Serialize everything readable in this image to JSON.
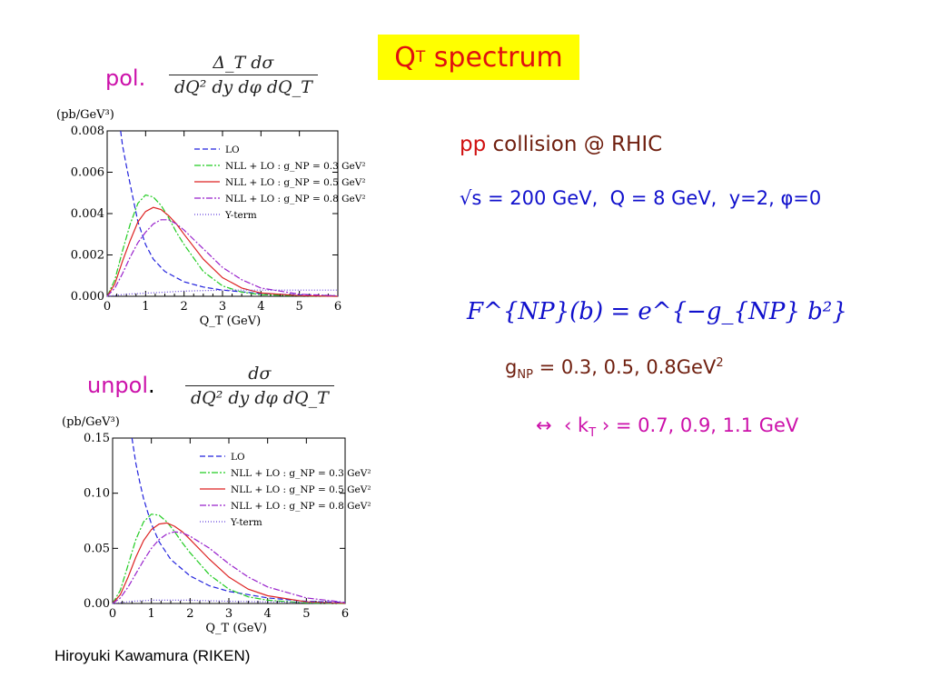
{
  "slide": {
    "title_main": "Q",
    "title_sub": "T",
    "title_rest": " spectrum",
    "pol_label": "pol.",
    "unpol_label": "unpol",
    "unpol_dot": ".",
    "pol_formula_num": "Δ_T dσ",
    "pol_formula_den": "dQ² dy dφ dQ_T",
    "unpol_formula_num": "dσ",
    "unpol_formula_den": "dQ² dy dφ dQ_T",
    "collision_pp": "pp",
    "collision_rest": " collision @ RHIC",
    "kinematics": "√s = 200 GeV,  Q = 8 GeV,  y=2, φ=0",
    "fnp_formula": "F^{NP}(b) = e^{−g_{NP} b²}",
    "gnp_prefix": "g",
    "gnp_sub": "NP",
    "gnp_values": " = 0.3, 0.5, 0.8GeV",
    "gnp_sup": "2",
    "kt_prefix": "↔  ‹ k",
    "kt_sub": "T",
    "kt_values": " › = 0.7, 0.9, 1.1 GeV",
    "footer": "Hiroyuki Kawamura (RIKEN)"
  },
  "chart_data": [
    {
      "type": "line",
      "title": "pol.",
      "ylabel": "(pb/GeV³)",
      "xlabel": "Q_T (GeV)",
      "xlim": [
        0,
        6
      ],
      "ylim": [
        0,
        0.008
      ],
      "xticks": [
        "0",
        "1",
        "2",
        "3",
        "4",
        "5",
        "6"
      ],
      "yticks": [
        "0.000",
        "0.002",
        "0.004",
        "0.006",
        "0.008"
      ],
      "legend_position": "top-right",
      "series": [
        {
          "name": "LO",
          "color": "#2222dd",
          "dash": "6,3",
          "x": [
            0.35,
            0.4,
            0.5,
            0.6,
            0.7,
            0.8,
            1.0,
            1.2,
            1.5,
            2.0,
            2.5,
            3.0,
            4.0,
            5.0,
            6.0
          ],
          "y": [
            0.008,
            0.0073,
            0.0063,
            0.0054,
            0.0045,
            0.0036,
            0.0025,
            0.0018,
            0.0012,
            0.0007,
            0.00045,
            0.0003,
            0.00013,
            6e-05,
            2e-05
          ]
        },
        {
          "name": "NLL + LO : g_NP = 0.3 GeV²",
          "color": "#22cc22",
          "dash": "7,2,2,2",
          "x": [
            0,
            0.2,
            0.4,
            0.6,
            0.8,
            1.0,
            1.2,
            1.4,
            1.6,
            1.8,
            2.0,
            2.5,
            3.0,
            3.5,
            4.0,
            5.0,
            6.0
          ],
          "y": [
            0,
            0.0008,
            0.0022,
            0.0035,
            0.0045,
            0.0049,
            0.0048,
            0.0044,
            0.0038,
            0.0031,
            0.0025,
            0.0012,
            0.0005,
            0.0002,
            8e-05,
            2e-05,
            0
          ]
        },
        {
          "name": "NLL + LO : g_NP = 0.5 GeV²",
          "color": "#dd2222",
          "dash": "",
          "x": [
            0,
            0.2,
            0.4,
            0.6,
            0.8,
            1.0,
            1.2,
            1.4,
            1.6,
            1.8,
            2.0,
            2.5,
            3.0,
            3.5,
            4.0,
            5.0,
            6.0
          ],
          "y": [
            0,
            0.0006,
            0.0017,
            0.0027,
            0.0036,
            0.0041,
            0.0043,
            0.0042,
            0.0039,
            0.0035,
            0.003,
            0.0018,
            0.0009,
            0.0004,
            0.00016,
            3e-05,
            0
          ]
        },
        {
          "name": "NLL + LO : g_NP = 0.8 GeV²",
          "color": "#9922cc",
          "dash": "7,2,2,2",
          "x": [
            0,
            0.2,
            0.4,
            0.6,
            0.8,
            1.0,
            1.2,
            1.4,
            1.6,
            1.8,
            2.0,
            2.5,
            3.0,
            3.5,
            4.0,
            5.0,
            6.0
          ],
          "y": [
            0,
            0.0004,
            0.0011,
            0.0019,
            0.0026,
            0.0031,
            0.0035,
            0.0037,
            0.0037,
            0.0035,
            0.0032,
            0.0023,
            0.0014,
            0.0008,
            0.0004,
            0.0001,
            2e-05
          ]
        },
        {
          "name": "Y-term",
          "color": "#6644dd",
          "dash": "1,2",
          "x": [
            0,
            0.5,
            1.0,
            2.0,
            3.0,
            4.0,
            5.0,
            6.0
          ],
          "y": [
            0,
            0.0001,
            0.00015,
            0.00025,
            0.0003,
            0.0003,
            0.0003,
            0.0003
          ]
        }
      ]
    },
    {
      "type": "line",
      "title": "unpol.",
      "ylabel": "(pb/GeV³)",
      "xlabel": "Q_T (GeV)",
      "xlim": [
        0,
        6
      ],
      "ylim": [
        0,
        0.15
      ],
      "xticks": [
        "0",
        "1",
        "2",
        "3",
        "4",
        "5",
        "6"
      ],
      "yticks": [
        "0.00",
        "0.05",
        "0.10",
        "0.15"
      ],
      "legend_position": "top-right",
      "series": [
        {
          "name": "LO",
          "color": "#2222dd",
          "dash": "6,3",
          "x": [
            0.5,
            0.6,
            0.7,
            0.8,
            1.0,
            1.2,
            1.5,
            2.0,
            2.5,
            3.0,
            4.0,
            5.0,
            6.0
          ],
          "y": [
            0.15,
            0.127,
            0.11,
            0.095,
            0.072,
            0.056,
            0.04,
            0.025,
            0.016,
            0.011,
            0.005,
            0.002,
            0.001
          ]
        },
        {
          "name": "NLL + LO : g_NP = 0.3 GeV²",
          "color": "#22cc22",
          "dash": "7,2,2,2",
          "x": [
            0,
            0.2,
            0.4,
            0.6,
            0.8,
            1.0,
            1.2,
            1.4,
            1.6,
            1.8,
            2.0,
            2.5,
            3.0,
            3.5,
            4.0,
            5.0,
            6.0
          ],
          "y": [
            0,
            0.012,
            0.035,
            0.058,
            0.074,
            0.081,
            0.08,
            0.074,
            0.065,
            0.055,
            0.046,
            0.026,
            0.013,
            0.006,
            0.003,
            0.0005,
            0
          ]
        },
        {
          "name": "NLL + LO : g_NP = 0.5 GeV²",
          "color": "#dd2222",
          "dash": "",
          "x": [
            0,
            0.2,
            0.4,
            0.6,
            0.8,
            1.0,
            1.2,
            1.4,
            1.6,
            1.8,
            2.0,
            2.5,
            3.0,
            3.5,
            4.0,
            5.0,
            6.0
          ],
          "y": [
            0,
            0.008,
            0.024,
            0.042,
            0.057,
            0.067,
            0.072,
            0.073,
            0.07,
            0.065,
            0.058,
            0.04,
            0.024,
            0.013,
            0.007,
            0.0015,
            0.0002
          ]
        },
        {
          "name": "NLL + LO : g_NP = 0.8 GeV²",
          "color": "#9922cc",
          "dash": "7,2,2,2",
          "x": [
            0,
            0.2,
            0.4,
            0.6,
            0.8,
            1.0,
            1.2,
            1.4,
            1.6,
            1.8,
            2.0,
            2.5,
            3.0,
            3.5,
            4.0,
            5.0,
            6.0
          ],
          "y": [
            0,
            0.005,
            0.015,
            0.027,
            0.039,
            0.05,
            0.058,
            0.063,
            0.065,
            0.064,
            0.061,
            0.05,
            0.036,
            0.024,
            0.015,
            0.005,
            0.001
          ]
        },
        {
          "name": "Y-term",
          "color": "#6644dd",
          "dash": "1,2",
          "x": [
            0,
            0.5,
            1.0,
            1.5,
            2.0,
            3.0,
            4.0,
            5.0,
            6.0
          ],
          "y": [
            0,
            0.002,
            0.003,
            0.003,
            0.003,
            0.002,
            0.0015,
            0.001,
            0.0008
          ]
        }
      ]
    }
  ]
}
